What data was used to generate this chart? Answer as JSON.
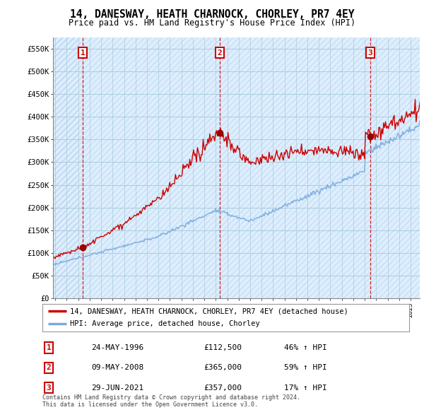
{
  "title": "14, DANESWAY, HEATH CHARNOCK, CHORLEY, PR7 4EY",
  "subtitle": "Price paid vs. HM Land Registry's House Price Index (HPI)",
  "ylim": [
    0,
    575000
  ],
  "yticks": [
    0,
    50000,
    100000,
    150000,
    200000,
    250000,
    300000,
    350000,
    400000,
    450000,
    500000,
    550000
  ],
  "ytick_labels": [
    "£0",
    "£50K",
    "£100K",
    "£150K",
    "£200K",
    "£250K",
    "£300K",
    "£350K",
    "£400K",
    "£450K",
    "£500K",
    "£550K"
  ],
  "xlim_start": 1993.8,
  "xlim_end": 2025.8,
  "sale_dates": [
    1996.39,
    2008.36,
    2021.49
  ],
  "sale_prices": [
    112500,
    365000,
    357000
  ],
  "sale_labels": [
    "1",
    "2",
    "3"
  ],
  "legend_label_property": "14, DANESWAY, HEATH CHARNOCK, CHORLEY, PR7 4EY (detached house)",
  "legend_label_hpi": "HPI: Average price, detached house, Chorley",
  "property_color": "#cc0000",
  "hpi_color": "#7aaadd",
  "table_rows": [
    [
      "1",
      "24-MAY-1996",
      "£112,500",
      "46% ↑ HPI"
    ],
    [
      "2",
      "09-MAY-2008",
      "£365,000",
      "59% ↑ HPI"
    ],
    [
      "3",
      "29-JUN-2021",
      "£357,000",
      "17% ↑ HPI"
    ]
  ],
  "footer": "Contains HM Land Registry data © Crown copyright and database right 2024.\nThis data is licensed under the Open Government Licence v3.0.",
  "background_color": "#ffffff",
  "chart_bg_color": "#ddeeff",
  "grid_color": "#aaccee",
  "hatch_color": "#bbddff"
}
